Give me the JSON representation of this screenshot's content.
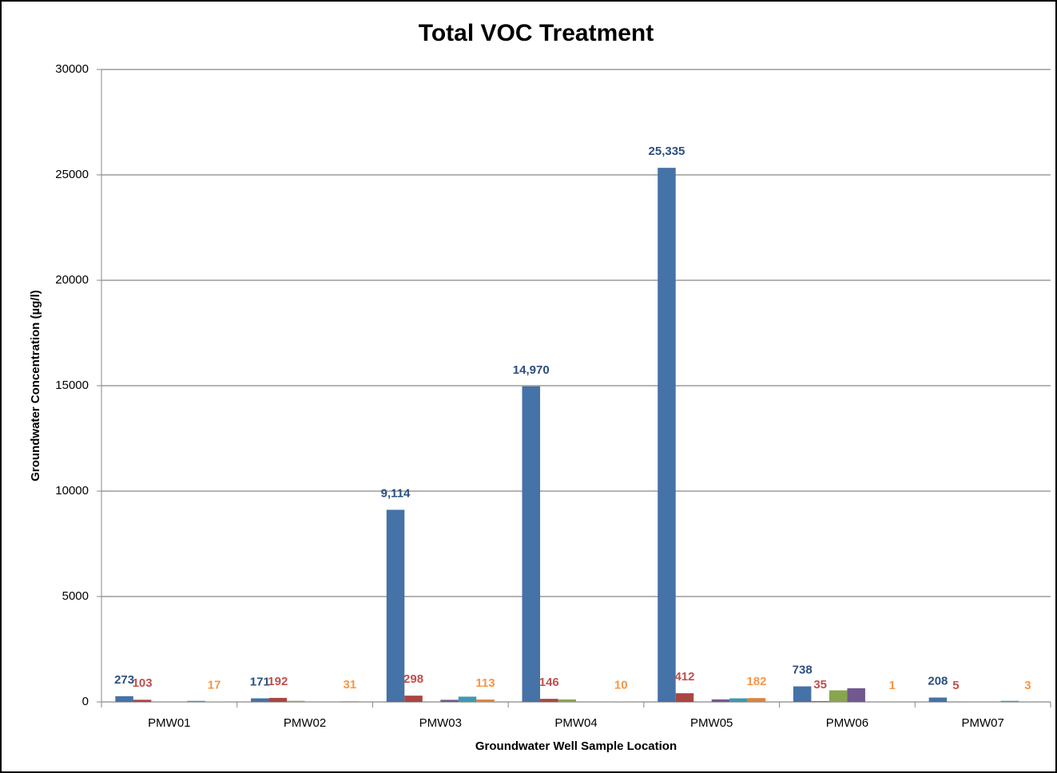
{
  "chart_data": {
    "type": "bar",
    "title": "Total VOC Treatment",
    "x_label": "Groundwater Well Sample Location",
    "y_label": "Groundwater Concentration (µg/l)",
    "categories": [
      "PMW01",
      "PMW02",
      "PMW03",
      "PMW04",
      "PMW05",
      "PMW06",
      "PMW07"
    ],
    "series": [
      {
        "color": "#4572a7",
        "label_color": "#2d4f80",
        "show_labels": true,
        "values": [
          273,
          171,
          9114,
          14970,
          25335,
          738,
          208
        ],
        "value_labels": [
          "273",
          "171",
          "9,114",
          "14,970",
          "25,335",
          "738",
          "208"
        ]
      },
      {
        "color": "#aa4643",
        "label_color": "#c0504d",
        "show_labels": true,
        "values": [
          103,
          192,
          298,
          146,
          412,
          35,
          5
        ]
      },
      {
        "color": "#89a54e",
        "show_labels": false,
        "values": [
          0,
          50,
          0,
          120,
          0,
          550,
          0
        ]
      },
      {
        "color": "#71588f",
        "show_labels": false,
        "values": [
          0,
          0,
          100,
          0,
          120,
          650,
          0
        ]
      },
      {
        "color": "#4198af",
        "show_labels": false,
        "values": [
          50,
          0,
          250,
          0,
          170,
          0,
          50
        ]
      },
      {
        "color": "#db843d",
        "label_color": "#f79646",
        "show_labels": true,
        "values": [
          17,
          31,
          113,
          10,
          182,
          1,
          3
        ]
      }
    ],
    "ylim": [
      0,
      30000
    ],
    "yticks": [
      0,
      5000,
      10000,
      15000,
      20000,
      25000,
      30000
    ],
    "grid": true
  }
}
